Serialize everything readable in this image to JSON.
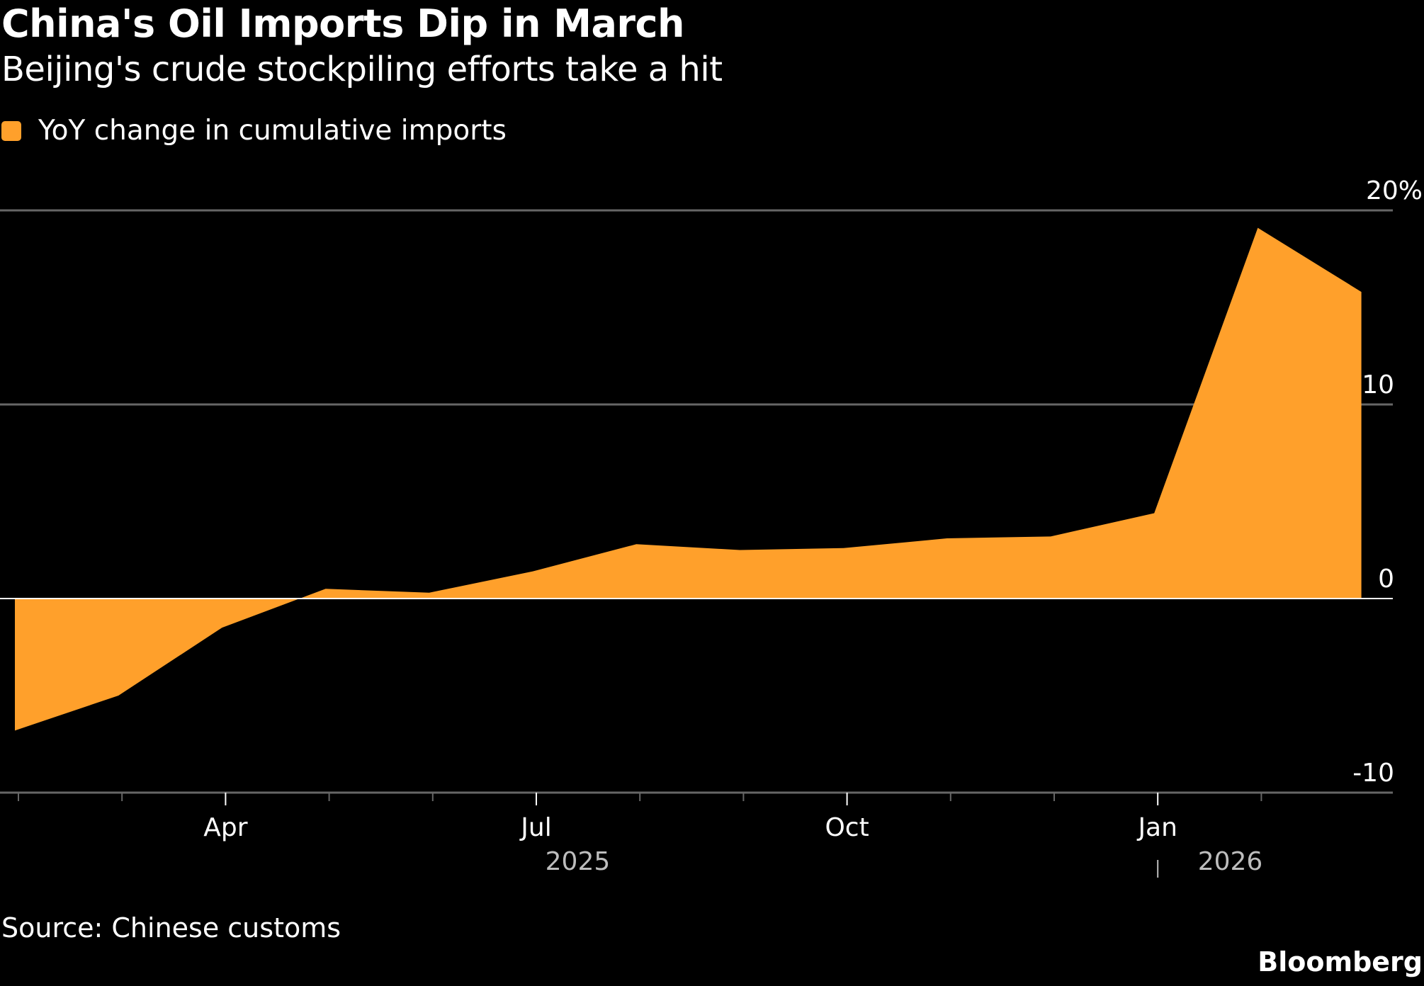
{
  "header": {
    "title": "China's Oil Imports Dip in March",
    "subtitle": "Beijing's crude stockpiling efforts take a hit"
  },
  "legend": {
    "label": "YoY change in cumulative imports",
    "color": "#ffa02b"
  },
  "footer": {
    "source": "Source: Chinese customs",
    "brand": "Bloomberg"
  },
  "colors": {
    "background": "#000000",
    "area": "#ffa02b",
    "gridline": "#666666",
    "zero_line": "#ffffff",
    "year_label": "#bdbdbd"
  },
  "chart_data": {
    "type": "area",
    "title": "China's Oil Imports Dip in March",
    "subtitle": "Beijing's crude stockpiling efforts take a hit",
    "xlabel": "",
    "ylabel": "",
    "x": [
      "2025-02",
      "2025-03",
      "2025-04",
      "2025-05",
      "2025-06",
      "2025-07",
      "2025-08",
      "2025-09",
      "2025-10",
      "2025-11",
      "2025-12",
      "2026-01",
      "2026-02",
      "2026-03"
    ],
    "series": [
      {
        "name": "YoY change in cumulative imports",
        "values": [
          -6.8,
          -5.0,
          -1.5,
          0.5,
          0.3,
          1.4,
          2.8,
          2.5,
          2.6,
          3.1,
          3.2,
          4.4,
          19.1,
          15.8
        ]
      }
    ],
    "ylim": [
      -10,
      20
    ],
    "y_ticks": [
      {
        "value": 20,
        "label": "20%"
      },
      {
        "value": 10,
        "label": "10"
      },
      {
        "value": 0,
        "label": "0"
      },
      {
        "value": -10,
        "label": "-10"
      }
    ],
    "x_ticks": [
      "2025-02",
      "2025-03",
      "2025-04",
      "2025-05",
      "2025-06",
      "2025-07",
      "2025-08",
      "2025-09",
      "2025-10",
      "2025-11",
      "2025-12",
      "2026-01",
      "2026-02"
    ],
    "x_tick_labels": [
      {
        "month": "2025-04",
        "label": "Apr"
      },
      {
        "month": "2025-07",
        "label": "Jul"
      },
      {
        "month": "2025-10",
        "label": "Oct"
      },
      {
        "month": "2026-01",
        "label": "Jan"
      }
    ],
    "year_labels": [
      {
        "label": "2025",
        "center_month": "2025-07.4"
      },
      {
        "label": "2026",
        "center_month": "2026-01.7"
      }
    ],
    "grid": true,
    "y_axis_side": "right",
    "legend_position": "top-left"
  }
}
